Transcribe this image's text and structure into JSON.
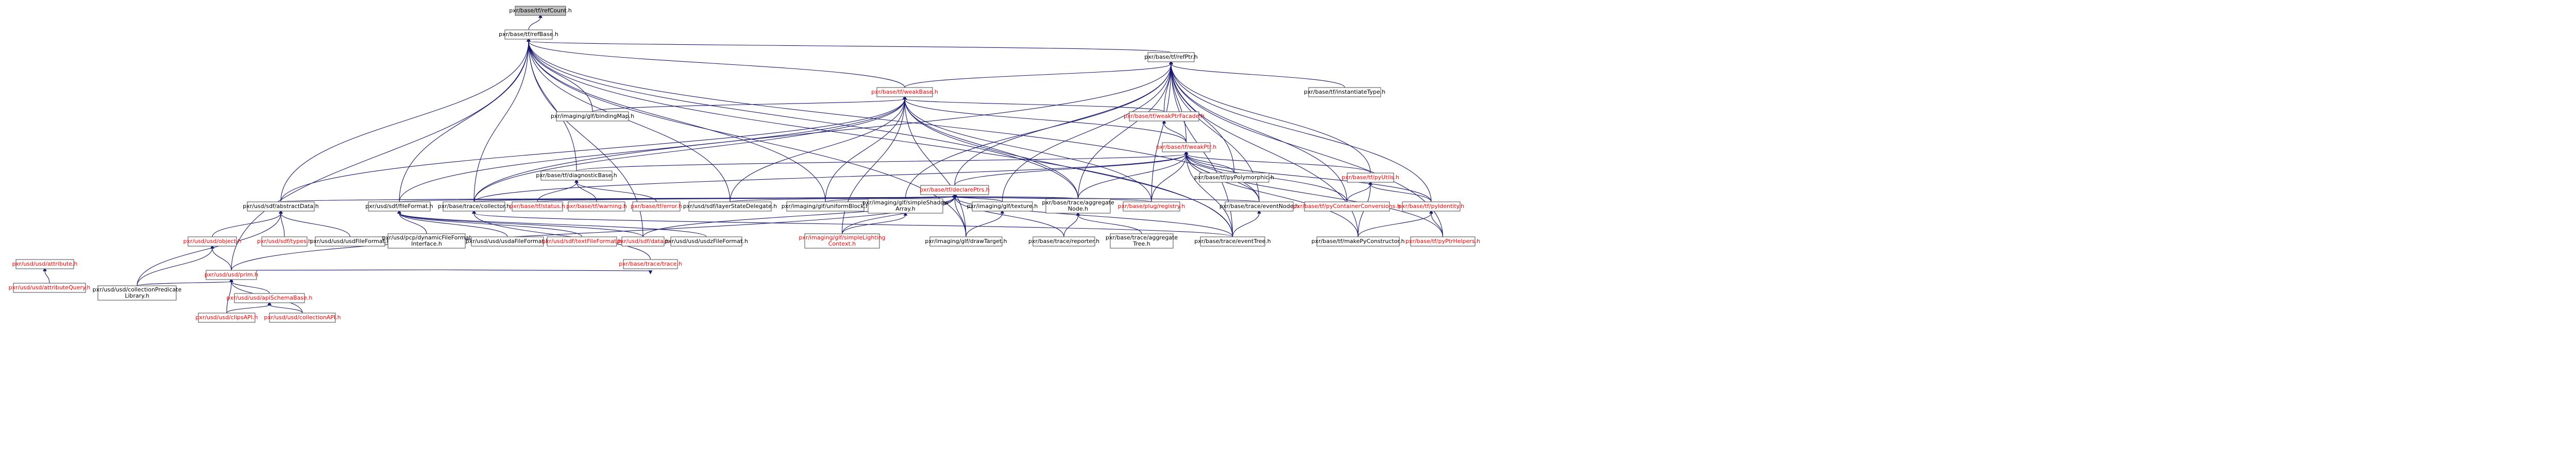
{
  "graph": {
    "colors": {
      "edge": "#191970",
      "node_fill": "#ffffff",
      "node_border": "#666666",
      "root_fill": "#bfbfbf",
      "text": "#000000",
      "text_incomplete": "#ff0000"
    },
    "nodes": [
      {
        "id": "refCount",
        "label": "pxr/base/tf/refCount.h",
        "lines": [
          "pxr/base/tf/refCount.h"
        ],
        "color": "black",
        "root": true
      },
      {
        "id": "refBase",
        "label": "pxr/base/tf/refBase.h",
        "lines": [
          "pxr/base/tf/refBase.h"
        ],
        "color": "black"
      },
      {
        "id": "refPtr",
        "label": "pxr/base/tf/refPtr.h",
        "lines": [
          "pxr/base/tf/refPtr.h"
        ],
        "color": "black"
      },
      {
        "id": "weakBase",
        "label": "pxr/base/tf/weakBase.h",
        "lines": [
          "pxr/base/tf/weakBase.h"
        ],
        "color": "red"
      },
      {
        "id": "weakPtrFacade",
        "label": "pxr/base/tf/weakPtrFacade.h",
        "lines": [
          "pxr/base/tf/weakPtrFacade.h"
        ],
        "color": "red"
      },
      {
        "id": "weakPtr",
        "label": "pxr/base/tf/weakPtr.h",
        "lines": [
          "pxr/base/tf/weakPtr.h"
        ],
        "color": "red"
      },
      {
        "id": "instantiateType",
        "label": "pxr/base/tf/instantiateType.h",
        "lines": [
          "pxr/base/tf/instantiateType.h"
        ],
        "color": "black"
      },
      {
        "id": "bindingMap",
        "label": "pxr/imaging/glf/bindingMap.h",
        "lines": [
          "pxr/imaging/glf/bindingMap.h"
        ],
        "color": "black"
      },
      {
        "id": "declarePtrs",
        "label": "pxr/base/tf/declarePtrs.h",
        "lines": [
          "pxr/base/tf/declarePtrs.h"
        ],
        "color": "red"
      },
      {
        "id": "diagnosticBase",
        "label": "pxr/base/tf/diagnosticBase.h",
        "lines": [
          "pxr/base/tf/diagnosticBase.h"
        ],
        "color": "black"
      },
      {
        "id": "pyPolymorphic",
        "label": "pxr/base/tf/pyPolymorphic.h",
        "lines": [
          "pxr/base/tf/pyPolymorphic.h"
        ],
        "color": "black"
      },
      {
        "id": "pyUtils",
        "label": "pxr/base/tf/pyUtils.h",
        "lines": [
          "pxr/base/tf/pyUtils.h"
        ],
        "color": "red"
      },
      {
        "id": "abstractData",
        "label": "pxr/usd/sdf/abstractData.h",
        "lines": [
          "pxr/usd/sdf/abstractData.h"
        ],
        "color": "black"
      },
      {
        "id": "sdfFileFormat",
        "label": "pxr/usd/sdf/fileFormat.h",
        "lines": [
          "pxr/usd/sdf/fileFormat.h"
        ],
        "color": "black"
      },
      {
        "id": "collector",
        "label": "pxr/base/trace/collector.h",
        "lines": [
          "pxr/base/trace/collector.h"
        ],
        "color": "black"
      },
      {
        "id": "tfStatus",
        "label": "pxr/base/tf/status.h",
        "lines": [
          "pxr/base/tf/status.h"
        ],
        "color": "red"
      },
      {
        "id": "tfWarning",
        "label": "pxr/base/tf/warning.h",
        "lines": [
          "pxr/base/tf/warning.h"
        ],
        "color": "red"
      },
      {
        "id": "tfError",
        "label": "pxr/base/tf/error.h",
        "lines": [
          "pxr/base/tf/error.h"
        ],
        "color": "red"
      },
      {
        "id": "layerStateDelegate",
        "label": "pxr/usd/sdf/layerStateDelegate.h",
        "lines": [
          "pxr/usd/sdf/layerStateDelegate.h"
        ],
        "color": "black"
      },
      {
        "id": "uniformBlock",
        "label": "pxr/imaging/glf/uniformBlock.h",
        "lines": [
          "pxr/imaging/glf/uniformBlock.h"
        ],
        "color": "black"
      },
      {
        "id": "shadowArray",
        "label": "pxr/imaging/glf/simpleShadowArray.h",
        "lines": [
          "pxr/imaging/glf/simpleShadow",
          "Array.h"
        ],
        "color": "black"
      },
      {
        "id": "glfTexture",
        "label": "pxr/imaging/glf/texture.h",
        "lines": [
          "pxr/imaging/glf/texture.h"
        ],
        "color": "black"
      },
      {
        "id": "aggregateNode",
        "label": "pxr/base/trace/aggregateNode.h",
        "lines": [
          "pxr/base/trace/aggregate",
          "Node.h"
        ],
        "color": "black"
      },
      {
        "id": "plugRegistry",
        "label": "pxr/base/plug/registry.h",
        "lines": [
          "pxr/base/plug/registry.h"
        ],
        "color": "red"
      },
      {
        "id": "eventNode",
        "label": "pxr/base/trace/eventNode.h",
        "lines": [
          "pxr/base/trace/eventNode.h"
        ],
        "color": "black"
      },
      {
        "id": "containerConv",
        "label": "pxr/base/tf/pyContainerConversions.h",
        "lines": [
          "pxr/base/tf/pyContainerConversions.h"
        ],
        "color": "red"
      },
      {
        "id": "pyIdentity",
        "label": "pxr/base/tf/pyIdentity.h",
        "lines": [
          "pxr/base/tf/pyIdentity.h"
        ],
        "color": "red"
      },
      {
        "id": "usdObject",
        "label": "pxr/usd/usd/object.h",
        "lines": [
          "pxr/usd/usd/object.h"
        ],
        "color": "red"
      },
      {
        "id": "sdfTypes",
        "label": "pxr/usd/sdf/types.h",
        "lines": [
          "pxr/usd/sdf/types.h"
        ],
        "color": "red"
      },
      {
        "id": "usdFileFormat",
        "label": "pxr/usd/usd/usdFileFormat.h",
        "lines": [
          "pxr/usd/usd/usdFileFormat.h"
        ],
        "color": "black"
      },
      {
        "id": "dynamicFF",
        "label": "pxr/usd/pcp/dynamicFileFormatInterface.h",
        "lines": [
          "pxr/usd/pcp/dynamicFileFormat",
          "Interface.h"
        ],
        "color": "black"
      },
      {
        "id": "usdaFF",
        "label": "pxr/usd/usd/usdaFileFormat.h",
        "lines": [
          "pxr/usd/usd/usdaFileFormat.h"
        ],
        "color": "black"
      },
      {
        "id": "textFF",
        "label": "pxr/usd/sdf/textFileFormat.h",
        "lines": [
          "pxr/usd/sdf/textFileFormat.h"
        ],
        "color": "red"
      },
      {
        "id": "sdfData",
        "label": "pxr/usd/sdf/data.h",
        "lines": [
          "pxr/usd/sdf/data.h"
        ],
        "color": "red"
      },
      {
        "id": "usdzFF",
        "label": "pxr/usd/usd/usdzFileFormat.h",
        "lines": [
          "pxr/usd/usd/usdzFileFormat.h"
        ],
        "color": "black"
      },
      {
        "id": "lightingCtx",
        "label": "pxr/imaging/glf/simpleLightingContext.h",
        "lines": [
          "pxr/imaging/glf/simpleLighting",
          "Context.h"
        ],
        "color": "red"
      },
      {
        "id": "drawTarget",
        "label": "pxr/imaging/glf/drawTarget.h",
        "lines": [
          "pxr/imaging/glf/drawTarget.h"
        ],
        "color": "black"
      },
      {
        "id": "reporter",
        "label": "pxr/base/trace/reporter.h",
        "lines": [
          "pxr/base/trace/reporter.h"
        ],
        "color": "black"
      },
      {
        "id": "aggregateTree",
        "label": "pxr/base/trace/aggregateTree.h",
        "lines": [
          "pxr/base/trace/aggregate",
          "Tree.h"
        ],
        "color": "black"
      },
      {
        "id": "eventTree",
        "label": "pxr/base/trace/eventTree.h",
        "lines": [
          "pxr/base/trace/eventTree.h"
        ],
        "color": "black"
      },
      {
        "id": "makePyCtor",
        "label": "pxr/base/tf/makePyConstructor.h",
        "lines": [
          "pxr/base/tf/makePyConstructor.h"
        ],
        "color": "black"
      },
      {
        "id": "pyPtrHelpers",
        "label": "pxr/base/tf/pyPtrHelpers.h",
        "lines": [
          "pxr/base/tf/pyPtrHelpers.h"
        ],
        "color": "red"
      },
      {
        "id": "traceH",
        "label": "pxr/base/trace/trace.h",
        "lines": [
          "pxr/base/trace/trace.h"
        ],
        "color": "red"
      },
      {
        "id": "usdAttribute",
        "label": "pxr/usd/usd/attribute.h",
        "lines": [
          "pxr/usd/usd/attribute.h"
        ],
        "color": "red"
      },
      {
        "id": "usdPrim",
        "label": "pxr/usd/usd/prim.h",
        "lines": [
          "pxr/usd/usd/prim.h"
        ],
        "color": "red"
      },
      {
        "id": "attributeQuery",
        "label": "pxr/usd/usd/attributeQuery.h",
        "lines": [
          "pxr/usd/usd/attributeQuery.h"
        ],
        "color": "red"
      },
      {
        "id": "collPredLib",
        "label": "pxr/usd/usd/collectionPredicateLibrary.h",
        "lines": [
          "pxr/usd/usd/collectionPredicate",
          "Library.h"
        ],
        "color": "black"
      },
      {
        "id": "apiSchemaBase",
        "label": "pxr/usd/usd/apiSchemaBase.h",
        "lines": [
          "pxr/usd/usd/apiSchemaBase.h"
        ],
        "color": "red"
      },
      {
        "id": "clipsAPI",
        "label": "pxr/usd/usd/clipsAPI.h",
        "lines": [
          "pxr/usd/usd/clipsAPI.h"
        ],
        "color": "red"
      },
      {
        "id": "collectionAPI",
        "label": "pxr/usd/usd/collectionAPI.h",
        "lines": [
          "pxr/usd/usd/collectionAPI.h"
        ],
        "color": "red"
      }
    ],
    "edges": [
      [
        "refCount",
        "refBase"
      ],
      [
        "refBase",
        "refPtr"
      ],
      [
        "refBase",
        "weakBase"
      ],
      [
        "refBase",
        "bindingMap"
      ],
      [
        "refBase",
        "abstractData"
      ],
      [
        "refBase",
        "sdfFileFormat"
      ],
      [
        "refBase",
        "diagnosticBase"
      ],
      [
        "refBase",
        "collector"
      ],
      [
        "refBase",
        "layerStateDelegate"
      ],
      [
        "refBase",
        "uniformBlock"
      ],
      [
        "refBase",
        "drawTarget"
      ],
      [
        "refBase",
        "aggregateNode"
      ],
      [
        "refBase",
        "eventNode"
      ],
      [
        "refBase",
        "eventTree"
      ],
      [
        "refBase",
        "usdPrim"
      ],
      [
        "refBase",
        "sdfData"
      ],
      [
        "refPtr",
        "weakBase"
      ],
      [
        "refPtr",
        "weakPtrFacade"
      ],
      [
        "refPtr",
        "weakPtr"
      ],
      [
        "refPtr",
        "instantiateType"
      ],
      [
        "refPtr",
        "declarePtrs"
      ],
      [
        "refPtr",
        "pyPolymorphic"
      ],
      [
        "refPtr",
        "pyUtils"
      ],
      [
        "refPtr",
        "pyIdentity"
      ],
      [
        "refPtr",
        "makePyCtor"
      ],
      [
        "refPtr",
        "pyPtrHelpers"
      ],
      [
        "refPtr",
        "containerConv"
      ],
      [
        "refPtr",
        "plugRegistry"
      ],
      [
        "refPtr",
        "aggregateNode"
      ],
      [
        "refPtr",
        "eventNode"
      ],
      [
        "refPtr",
        "eventTree"
      ],
      [
        "refPtr",
        "glfTexture"
      ],
      [
        "refPtr",
        "shadowArray"
      ],
      [
        "refPtr",
        "collector"
      ],
      [
        "weakBase",
        "weakPtrFacade"
      ],
      [
        "weakBase",
        "weakPtr"
      ],
      [
        "weakBase",
        "bindingMap"
      ],
      [
        "weakBase",
        "abstractData"
      ],
      [
        "weakBase",
        "sdfFileFormat"
      ],
      [
        "weakBase",
        "collector"
      ],
      [
        "weakBase",
        "layerStateDelegate"
      ],
      [
        "weakBase",
        "uniformBlock"
      ],
      [
        "weakBase",
        "lightingCtx"
      ],
      [
        "weakBase",
        "drawTarget"
      ],
      [
        "weakBase",
        "aggregateNode"
      ],
      [
        "weakBase",
        "plugRegistry"
      ],
      [
        "weakBase",
        "eventTree"
      ],
      [
        "weakPtrFacade",
        "weakPtr"
      ],
      [
        "weakPtr",
        "declarePtrs"
      ],
      [
        "weakPtr",
        "pyPolymorphic"
      ],
      [
        "weakPtr",
        "pyUtils"
      ],
      [
        "weakPtr",
        "plugRegistry"
      ],
      [
        "weakPtr",
        "containerConv"
      ],
      [
        "weakPtr",
        "pyIdentity"
      ],
      [
        "weakPtr",
        "makePyCtor"
      ],
      [
        "weakPtr",
        "pyPtrHelpers"
      ],
      [
        "weakPtr",
        "eventNode"
      ],
      [
        "weakPtr",
        "eventTree"
      ],
      [
        "weakPtr",
        "aggregateNode"
      ],
      [
        "weakPtr",
        "diagnosticBase"
      ],
      [
        "weakPtr",
        "collector"
      ],
      [
        "declarePtrs",
        "abstractData"
      ],
      [
        "declarePtrs",
        "sdfFileFormat"
      ],
      [
        "declarePtrs",
        "collector"
      ],
      [
        "declarePtrs",
        "tfStatus"
      ],
      [
        "declarePtrs",
        "layerStateDelegate"
      ],
      [
        "declarePtrs",
        "uniformBlock"
      ],
      [
        "declarePtrs",
        "shadowArray"
      ],
      [
        "declarePtrs",
        "glfTexture"
      ],
      [
        "declarePtrs",
        "aggregateNode"
      ],
      [
        "declarePtrs",
        "plugRegistry"
      ],
      [
        "declarePtrs",
        "eventNode"
      ],
      [
        "declarePtrs",
        "lightingCtx"
      ],
      [
        "declarePtrs",
        "drawTarget"
      ],
      [
        "declarePtrs",
        "reporter"
      ],
      [
        "declarePtrs",
        "eventTree"
      ],
      [
        "declarePtrs",
        "usdPrim"
      ],
      [
        "declarePtrs",
        "sdfData"
      ],
      [
        "diagnosticBase",
        "tfStatus"
      ],
      [
        "diagnosticBase",
        "tfWarning"
      ],
      [
        "diagnosticBase",
        "tfError"
      ],
      [
        "pyUtils",
        "containerConv"
      ],
      [
        "pyUtils",
        "pyIdentity"
      ],
      [
        "pyUtils",
        "makePyCtor"
      ],
      [
        "pyIdentity",
        "makePyCtor"
      ],
      [
        "pyIdentity",
        "pyPtrHelpers"
      ],
      [
        "abstractData",
        "usdObject"
      ],
      [
        "abstractData",
        "sdfTypes"
      ],
      [
        "abstractData",
        "usdFileFormat"
      ],
      [
        "abstractData",
        "collPredLib"
      ],
      [
        "sdfFileFormat",
        "dynamicFF"
      ],
      [
        "sdfFileFormat",
        "usdaFF"
      ],
      [
        "sdfFileFormat",
        "textFF"
      ],
      [
        "sdfFileFormat",
        "sdfData"
      ],
      [
        "sdfFileFormat",
        "usdzFF"
      ],
      [
        "collector",
        "traceH"
      ],
      [
        "collector",
        "eventTree"
      ],
      [
        "shadowArray",
        "lightingCtx"
      ],
      [
        "glfTexture",
        "drawTarget"
      ],
      [
        "aggregateNode",
        "reporter"
      ],
      [
        "aggregateNode",
        "aggregateTree"
      ],
      [
        "eventNode",
        "eventTree"
      ],
      [
        "traceH",
        "usdPrim"
      ],
      [
        "usdObject",
        "usdPrim"
      ],
      [
        "usdObject",
        "collPredLib"
      ],
      [
        "usdAttribute",
        "attributeQuery"
      ],
      [
        "usdPrim",
        "collPredLib"
      ],
      [
        "usdPrim",
        "apiSchemaBase"
      ],
      [
        "usdPrim",
        "clipsAPI"
      ],
      [
        "usdPrim",
        "collectionAPI"
      ],
      [
        "apiSchemaBase",
        "clipsAPI"
      ],
      [
        "apiSchemaBase",
        "collectionAPI"
      ]
    ]
  }
}
